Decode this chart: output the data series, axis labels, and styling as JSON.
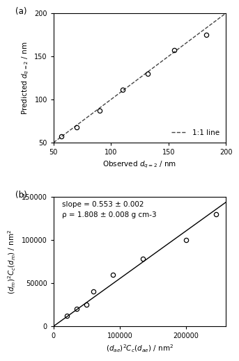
{
  "panel_a": {
    "observed": [
      57,
      70,
      90,
      110,
      132,
      155,
      183
    ],
    "predicted": [
      57,
      68,
      87,
      111,
      130,
      157,
      175
    ],
    "line_x": [
      50,
      200
    ],
    "line_y": [
      50,
      200
    ],
    "xlabel": "Observed $d_{q=2}$ / nm",
    "ylabel": "Predicted $d_{q=2}$ / nm",
    "xlim": [
      50,
      200
    ],
    "ylim": [
      50,
      200
    ],
    "xticks": [
      50,
      100,
      150,
      200
    ],
    "yticks": [
      50,
      100,
      150,
      200
    ],
    "legend_label": "1:1 line",
    "label": "(a)"
  },
  "panel_b": {
    "x": [
      20000,
      35000,
      50000,
      60000,
      90000,
      135000,
      200000,
      245000
    ],
    "y": [
      12000,
      20000,
      25000,
      40000,
      60000,
      78000,
      100000,
      130000
    ],
    "slope": 0.553,
    "line_x": [
      0,
      260000
    ],
    "xlabel": "$(d_{ae})^2C_c(d_{ae})$ / nm$^2$",
    "ylabel": "$(d_m)^2C_c(d_m)$ / nm$^2$",
    "xlim": [
      0,
      260000
    ],
    "ylim": [
      0,
      150000
    ],
    "xticks": [
      0,
      100000,
      200000
    ],
    "yticks": [
      0,
      50000,
      100000,
      150000
    ],
    "label": "(b)",
    "annotation_line1": "slope = 0.553 ± 0.002",
    "annotation_line2": "ρ = 1.808 ± 0.008 g cm-3"
  },
  "figure": {
    "facecolor": "#ffffff",
    "marker_style": "o",
    "marker_facecolor": "none",
    "marker_edgecolor": "#000000",
    "marker_size": 4.5,
    "line_color": "#000000",
    "dashed_color": "#444444",
    "font_size": 7.5,
    "tick_font_size": 7,
    "label_font_size": 7.5
  }
}
